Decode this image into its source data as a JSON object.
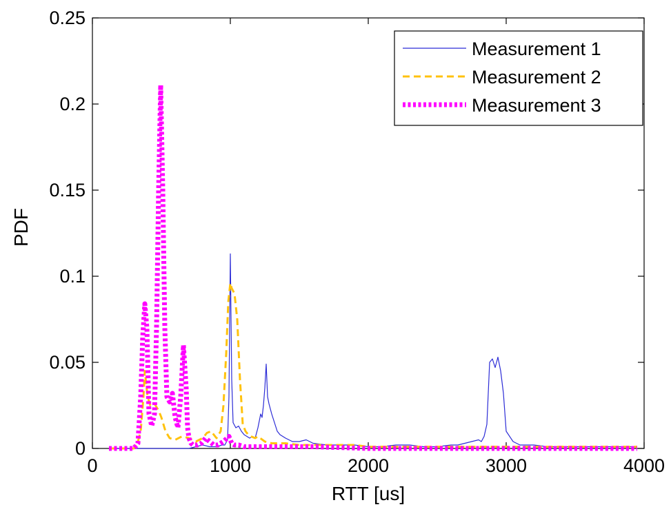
{
  "chart_data": {
    "type": "line",
    "xlabel": "RTT [us]",
    "ylabel": "PDF",
    "xlim": [
      0,
      4000
    ],
    "ylim": [
      0,
      0.25
    ],
    "xticks": [
      0,
      1000,
      2000,
      3000,
      4000
    ],
    "xtick_labels": [
      "0",
      "1000",
      "2000",
      "3000",
      "4000"
    ],
    "yticks": [
      0,
      0.05,
      0.1,
      0.15,
      0.2,
      0.25
    ],
    "ytick_labels": [
      "0",
      "0.05",
      "0.1",
      "0.15",
      "0.2",
      "0.25"
    ],
    "grid": false,
    "legend_position": "top-right",
    "series": [
      {
        "name": "Measurement 1",
        "color": "#2b2bd6",
        "style": "solid",
        "x": [
          120,
          700,
          800,
          850,
          900,
          940,
          960,
          980,
          990,
          1000,
          1010,
          1020,
          1040,
          1060,
          1080,
          1100,
          1120,
          1140,
          1160,
          1180,
          1200,
          1220,
          1230,
          1240,
          1250,
          1260,
          1270,
          1280,
          1300,
          1320,
          1340,
          1360,
          1400,
          1450,
          1500,
          1550,
          1600,
          1700,
          1800,
          1900,
          2000,
          2100,
          2200,
          2300,
          2400,
          2500,
          2600,
          2650,
          2700,
          2750,
          2800,
          2820,
          2840,
          2860,
          2880,
          2900,
          2920,
          2940,
          2960,
          2980,
          3000,
          3050,
          3100,
          3200,
          3300,
          3500,
          3700,
          3950
        ],
        "y": [
          0,
          0,
          0.002,
          0.001,
          0.001,
          0.002,
          0.002,
          0.005,
          0.03,
          0.113,
          0.04,
          0.015,
          0.012,
          0.013,
          0.01,
          0.008,
          0.007,
          0.006,
          0.007,
          0.006,
          0.012,
          0.02,
          0.018,
          0.025,
          0.035,
          0.049,
          0.03,
          0.026,
          0.02,
          0.015,
          0.01,
          0.008,
          0.006,
          0.004,
          0.004,
          0.005,
          0.003,
          0.002,
          0.002,
          0.002,
          0.001,
          0.001,
          0.002,
          0.002,
          0.001,
          0.001,
          0.002,
          0.002,
          0.003,
          0.004,
          0.005,
          0.004,
          0.007,
          0.014,
          0.05,
          0.052,
          0.047,
          0.053,
          0.045,
          0.032,
          0.01,
          0.004,
          0.002,
          0.002,
          0.001,
          0.001,
          0.001,
          0.001
        ]
      },
      {
        "name": "Measurement 2",
        "color": "#ffc20e",
        "style": "dashed",
        "x": [
          120,
          300,
          330,
          350,
          370,
          380,
          400,
          420,
          450,
          480,
          500,
          530,
          560,
          600,
          650,
          700,
          750,
          800,
          830,
          860,
          880,
          900,
          930,
          950,
          970,
          985,
          1000,
          1010,
          1030,
          1050,
          1070,
          1090,
          1110,
          1130,
          1150,
          1180,
          1200,
          1250,
          1300,
          1400,
          1500,
          1600,
          1700,
          1800,
          1900,
          2000,
          2200,
          2400,
          2600,
          2800,
          3000,
          3300,
          3600,
          3950
        ],
        "y": [
          0,
          0,
          0.004,
          0.01,
          0.03,
          0.045,
          0.03,
          0.025,
          0.026,
          0.022,
          0.018,
          0.01,
          0.006,
          0.005,
          0.007,
          0.006,
          0.004,
          0.006,
          0.009,
          0.01,
          0.008,
          0.006,
          0.01,
          0.025,
          0.055,
          0.085,
          0.096,
          0.093,
          0.09,
          0.075,
          0.04,
          0.014,
          0.01,
          0.008,
          0.007,
          0.006,
          0.007,
          0.004,
          0.003,
          0.003,
          0.002,
          0.002,
          0.002,
          0.002,
          0.002,
          0.001,
          0.001,
          0.001,
          0.001,
          0.001,
          0.001,
          0.001,
          0.001,
          0.001
        ]
      },
      {
        "name": "Measurement 3",
        "color": "#ff00ff",
        "style": "dotted",
        "x": [
          120,
          300,
          330,
          350,
          365,
          380,
          395,
          410,
          430,
          450,
          465,
          480,
          495,
          510,
          525,
          540,
          560,
          580,
          600,
          620,
          640,
          660,
          680,
          690,
          700,
          715,
          730,
          760,
          790,
          820,
          850,
          880,
          910,
          950,
          990,
          1010,
          1030,
          1060,
          1100,
          1150,
          1200,
          1300,
          1400,
          1600,
          2000,
          2500,
          3000,
          3500,
          3950
        ],
        "y": [
          0,
          0,
          0.003,
          0.03,
          0.065,
          0.084,
          0.07,
          0.02,
          0.013,
          0.02,
          0.07,
          0.15,
          0.211,
          0.15,
          0.07,
          0.03,
          0.027,
          0.032,
          0.018,
          0.012,
          0.03,
          0.06,
          0.035,
          0.012,
          0.006,
          0.003,
          0.002,
          0.002,
          0.003,
          0.006,
          0.004,
          0.002,
          0.002,
          0.004,
          0.007,
          0.003,
          0.002,
          0.002,
          0.001,
          0.001,
          0.001,
          0.001,
          0.001,
          0.001,
          0,
          0,
          0,
          0,
          0
        ]
      }
    ]
  }
}
